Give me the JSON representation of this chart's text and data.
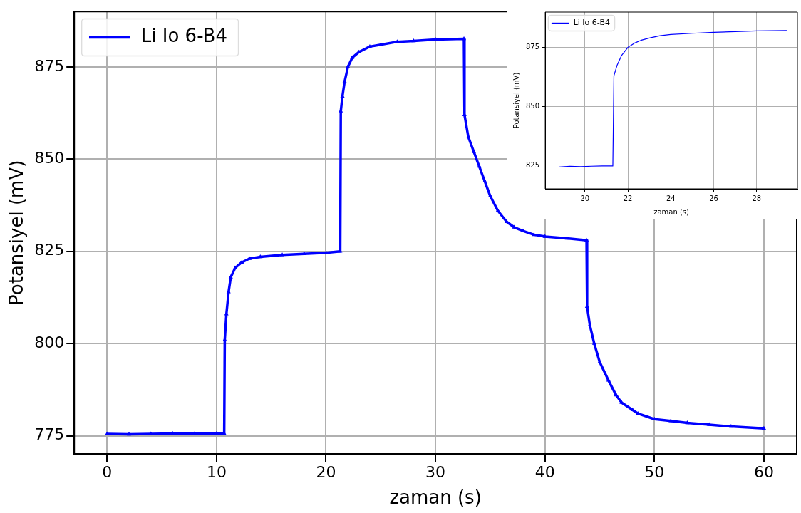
{
  "chart_data": [
    {
      "type": "line",
      "xlabel": "zaman (s)",
      "ylabel": "Potansiyel (mV)",
      "xlim": [
        -3,
        63
      ],
      "ylim": [
        770,
        890
      ],
      "xticks": [
        0,
        10,
        20,
        30,
        40,
        50,
        60
      ],
      "yticks": [
        775,
        800,
        825,
        850,
        875
      ],
      "grid": true,
      "legend": "top left",
      "marker": "triangle",
      "line_style": "solid",
      "series": [
        {
          "name": "Li Io 6-B4",
          "color": "#0000ff",
          "x": [
            0,
            2,
            4,
            6,
            8,
            10,
            10.7,
            10.75,
            10.9,
            11.1,
            11.3,
            11.7,
            12.3,
            13,
            14,
            16,
            18,
            20,
            21.3,
            21.35,
            21.5,
            21.7,
            22,
            22.4,
            23,
            24,
            25,
            26.5,
            28,
            30,
            32.6,
            32.65,
            33,
            33.5,
            34,
            34.5,
            35,
            35.7,
            36.5,
            37.2,
            38,
            39,
            40,
            42,
            43.8,
            43.85,
            44.1,
            44.5,
            45,
            45.8,
            46.5,
            47,
            48,
            48.5,
            50,
            51.5,
            53,
            55,
            57,
            60
          ],
          "values": [
            775.5,
            775.4,
            775.5,
            775.6,
            775.6,
            775.6,
            775.6,
            801,
            808,
            814,
            818,
            820.5,
            822,
            823,
            823.5,
            824,
            824.3,
            824.6,
            825,
            863,
            867,
            871,
            875,
            877.5,
            879,
            880.5,
            881,
            881.8,
            882,
            882.4,
            882.6,
            862,
            856,
            852,
            848,
            844,
            840,
            836,
            833,
            831.5,
            830.5,
            829.5,
            829,
            828.5,
            828,
            810,
            805,
            800,
            795,
            790,
            786,
            784,
            782,
            781,
            779.5,
            779,
            778.5,
            778,
            777.5,
            777
          ]
        }
      ]
    },
    {
      "type": "line",
      "xlabel": "zaman (s)",
      "ylabel": "Potansiyel (mV)",
      "xlim": [
        18.15,
        29.9
      ],
      "ylim": [
        815,
        890
      ],
      "xticks": [
        20,
        22,
        24,
        26,
        28
      ],
      "yticks": [
        825,
        850,
        875
      ],
      "grid": true,
      "legend": "top left",
      "marker": "none",
      "line_style": "solid",
      "series": [
        {
          "name": "Li Io 6-B4",
          "color": "#0000ff",
          "x": [
            18.8,
            19.3,
            19.8,
            20.3,
            20.8,
            21.3,
            21.35,
            21.5,
            21.7,
            22,
            22.3,
            22.6,
            23,
            23.5,
            24,
            25,
            26,
            27,
            28,
            29.4
          ],
          "values": [
            824.3,
            824.6,
            824.4,
            824.6,
            824.7,
            824.7,
            863,
            867.5,
            871.5,
            875,
            876.8,
            878,
            879,
            880,
            880.5,
            881,
            881.4,
            881.7,
            882,
            882.2
          ]
        }
      ]
    }
  ]
}
